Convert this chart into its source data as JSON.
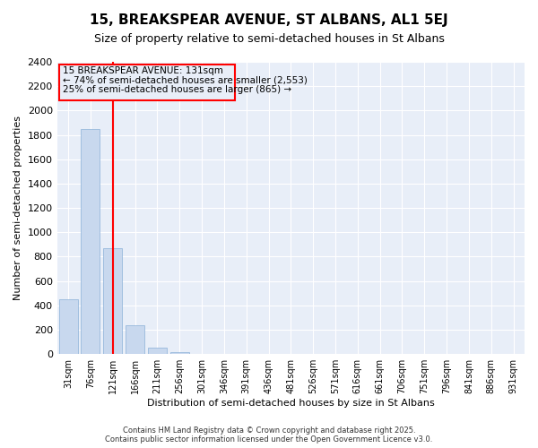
{
  "title": "15, BREAKSPEAR AVENUE, ST ALBANS, AL1 5EJ",
  "subtitle": "Size of property relative to semi-detached houses in St Albans",
  "xlabel": "Distribution of semi-detached houses by size in St Albans",
  "ylabel": "Number of semi-detached properties",
  "categories": [
    "31sqm",
    "76sqm",
    "121sqm",
    "166sqm",
    "211sqm",
    "256sqm",
    "301sqm",
    "346sqm",
    "391sqm",
    "436sqm",
    "481sqm",
    "526sqm",
    "571sqm",
    "616sqm",
    "661sqm",
    "706sqm",
    "751sqm",
    "796sqm",
    "841sqm",
    "886sqm",
    "931sqm"
  ],
  "values": [
    450,
    1850,
    870,
    235,
    55,
    15,
    0,
    0,
    0,
    0,
    0,
    0,
    0,
    0,
    0,
    0,
    0,
    0,
    0,
    0,
    0
  ],
  "bar_color": "#c8d8ee",
  "bar_edge_color": "#8ab0d8",
  "red_line_index": 2,
  "annotation_line1": "15 BREAKSPEAR AVENUE: 131sqm",
  "annotation_line2": "← 74% of semi-detached houses are smaller (2,553)",
  "annotation_line3": "25% of semi-detached houses are larger (865) →",
  "ylim": [
    0,
    2400
  ],
  "yticks": [
    0,
    200,
    400,
    600,
    800,
    1000,
    1200,
    1400,
    1600,
    1800,
    2000,
    2200,
    2400
  ],
  "background_color": "#ffffff",
  "plot_bg_color": "#e8eef8",
  "grid_color": "#ffffff",
  "footer": "Contains HM Land Registry data © Crown copyright and database right 2025.\nContains public sector information licensed under the Open Government Licence v3.0."
}
